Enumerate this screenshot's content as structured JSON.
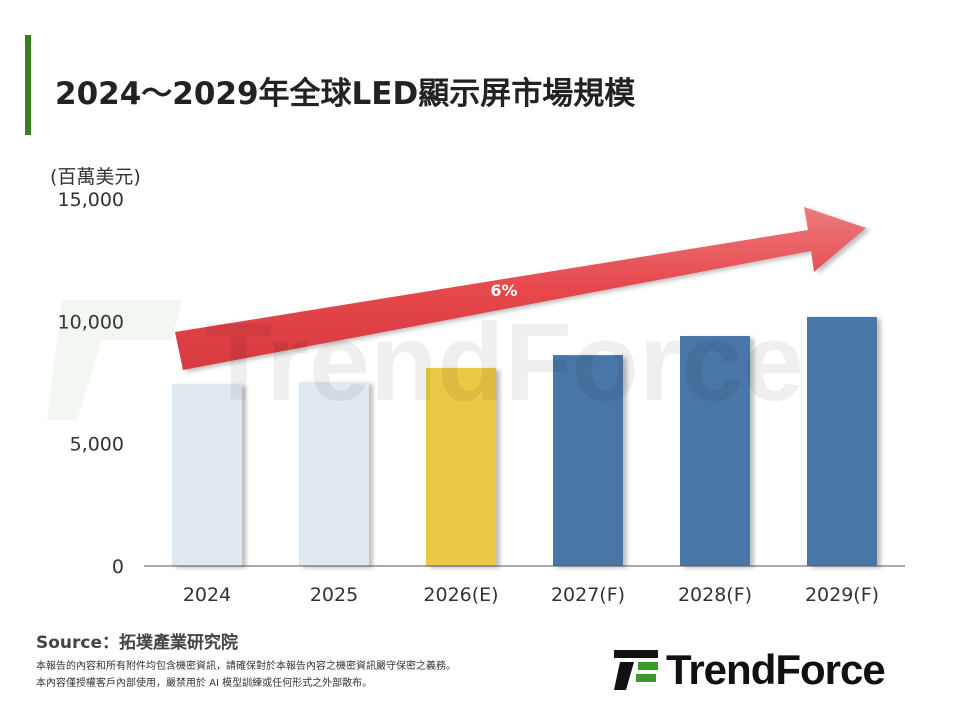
{
  "title": "2024～2029年全球LED顯示屏市場規模",
  "chart_data": {
    "type": "bar",
    "title": "2024～2029年全球LED顯示屏市場規模",
    "ylabel": "(百萬美元)",
    "categories": [
      "2024",
      "2025",
      "2026(E)",
      "2027(F)",
      "2028(F)",
      "2029(F)"
    ],
    "values": [
      7440,
      7520,
      8090,
      8620,
      9400,
      10180
    ],
    "colors": [
      "#e0e8f0",
      "#e0e8f0",
      "#ebc844",
      "#4a76a6",
      "#4a76a6",
      "#4a76a6"
    ],
    "ylim": [
      0,
      15000
    ],
    "yticks": [
      "0",
      "5,000",
      "10,000",
      "15,000"
    ],
    "ytick_values": [
      0,
      5000,
      10000,
      15000
    ],
    "grid": false,
    "annotation": {
      "label": "6%",
      "shape": "arrow",
      "color": "#e44a4e"
    }
  },
  "footer": {
    "source": "Source：拓墣產業研究院",
    "note_lines": [
      "本報告的內容和所有附件均包含機密資訊，請確保對於本報告內容之機密資訊嚴守保密之義務。",
      "本內容僅授權客戶內部使用，嚴禁用於 AI 模型訓練或任何形式之外部散布。"
    ]
  },
  "logo": {
    "text": "TrendForce",
    "watermark": "TrendForce"
  },
  "colors": {
    "accent": "#3a7d22"
  }
}
